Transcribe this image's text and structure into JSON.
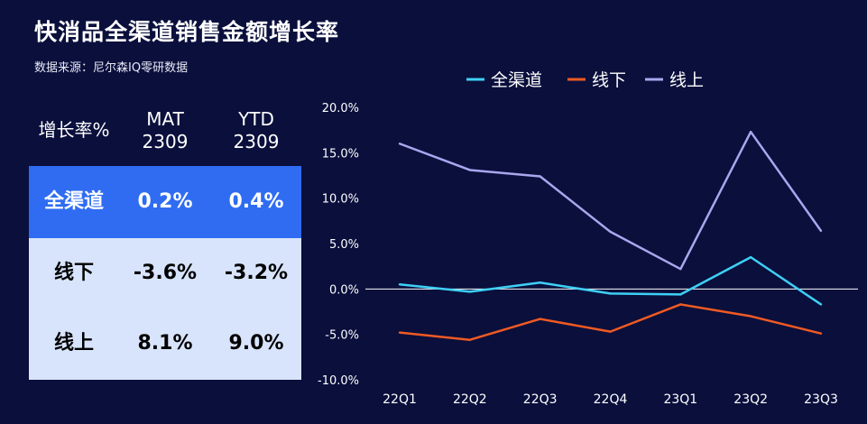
{
  "title": "快消品全渠道销售金额增长率",
  "source": "数据来源：尼尔森IQ零研数据",
  "table": {
    "header": {
      "col0": "增长率%",
      "col1": "MAT\n2309",
      "col2": "YTD\n2309"
    },
    "rows": [
      {
        "label": "全渠道",
        "mat": "0.2%",
        "ytd": "0.4%"
      },
      {
        "label": "线下",
        "mat": "-3.6%",
        "ytd": "-3.2%"
      },
      {
        "label": "线上",
        "mat": "8.1%",
        "ytd": "9.0%"
      }
    ]
  },
  "colors": {
    "background": "#0a0f3c",
    "header_row": "#2f6cf2",
    "body_rows": "#d8e4fb",
    "all_channel": "#3ed0f5",
    "offline": "#f05a23",
    "online": "#a9a6ee"
  },
  "chart_data": {
    "type": "line",
    "categories": [
      "22Q1",
      "22Q2",
      "22Q3",
      "22Q4",
      "23Q1",
      "23Q2",
      "23Q3"
    ],
    "series": [
      {
        "name": "全渠道",
        "color": "#3ed0f5",
        "values": [
          0.5,
          -0.3,
          0.7,
          -0.5,
          -0.6,
          3.5,
          -1.7
        ]
      },
      {
        "name": "线下",
        "color": "#f05a23",
        "values": [
          -4.8,
          -5.6,
          -3.3,
          -4.7,
          -1.7,
          -3.0,
          -4.9
        ]
      },
      {
        "name": "线上",
        "color": "#a9a6ee",
        "values": [
          16.0,
          13.1,
          12.4,
          6.3,
          2.2,
          17.3,
          6.4
        ]
      }
    ],
    "ylim": [
      -10,
      20
    ],
    "yticks": [
      -10,
      -5,
      0,
      5,
      10,
      15,
      20
    ],
    "ytick_labels": [
      "-10.0%",
      "-5.0%",
      "0.0%",
      "5.0%",
      "10.0%",
      "15.0%",
      "20.0%"
    ],
    "legend_position": "top",
    "grid": false,
    "zero_line": true
  }
}
